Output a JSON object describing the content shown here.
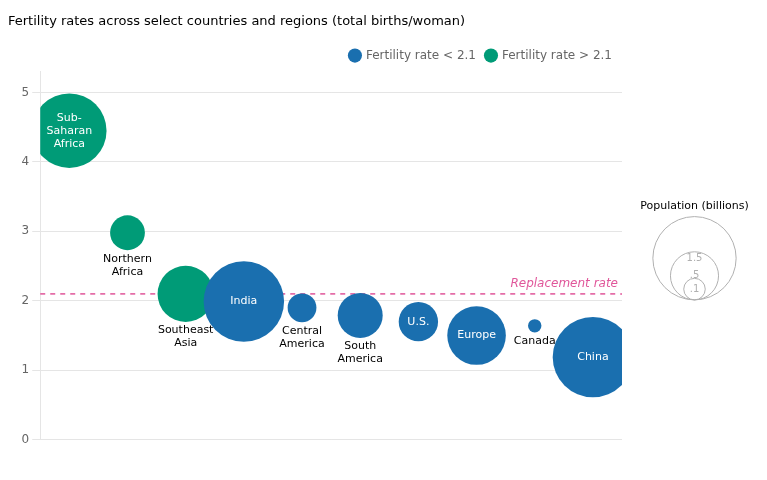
{
  "chart_data": {
    "type": "bubble",
    "title": "Fertility rates across select countries and regions (total births/woman)",
    "categories": [
      "Sub-\nSaharan\nAfrica",
      "Northern\nAfrica",
      "Southeast\nAsia",
      "India",
      "Central\nAmerica",
      "South\nAmerica",
      "U.S.",
      "Europe",
      "Canada",
      "China"
    ],
    "series": [
      {
        "name": "Fertility rate < 2.1",
        "color": "#1a6faf",
        "values": [
          null,
          null,
          null,
          1.99,
          1.9,
          1.79,
          1.7,
          1.5,
          1.64,
          1.19
        ],
        "sizes": [
          null,
          null,
          null,
          1.4,
          0.179,
          0.438,
          0.335,
          0.742,
          0.039,
          1.4
        ]
      },
      {
        "name": "Fertility rate > 2.1",
        "color": "#009b77",
        "values": [
          4.45,
          2.98,
          2.1,
          null,
          null,
          null,
          null,
          null,
          null,
          null
        ],
        "sizes": [
          1.2,
          0.262,
          0.683,
          null,
          null,
          null,
          null,
          null,
          null,
          null
        ]
      }
    ],
    "ylim": [
      0,
      5.3
    ],
    "yticks": [
      0,
      1,
      2,
      3,
      4,
      5
    ],
    "grid": true,
    "tick_labels": "y",
    "legend": "upper right",
    "annotations": [
      {
        "type": "hline",
        "y": 2.1,
        "text": "Replacement rate",
        "color": "#e0569a",
        "line_style": "dashed"
      }
    ],
    "size_legend": {
      "title": "Population (billions)",
      "color": "#b0b0b0",
      "values": [
        1.5,
        {
          "value": 0.5,
          "label": ".5"
        },
        {
          "value": 0.1,
          "label": ".1"
        }
      ]
    }
  }
}
